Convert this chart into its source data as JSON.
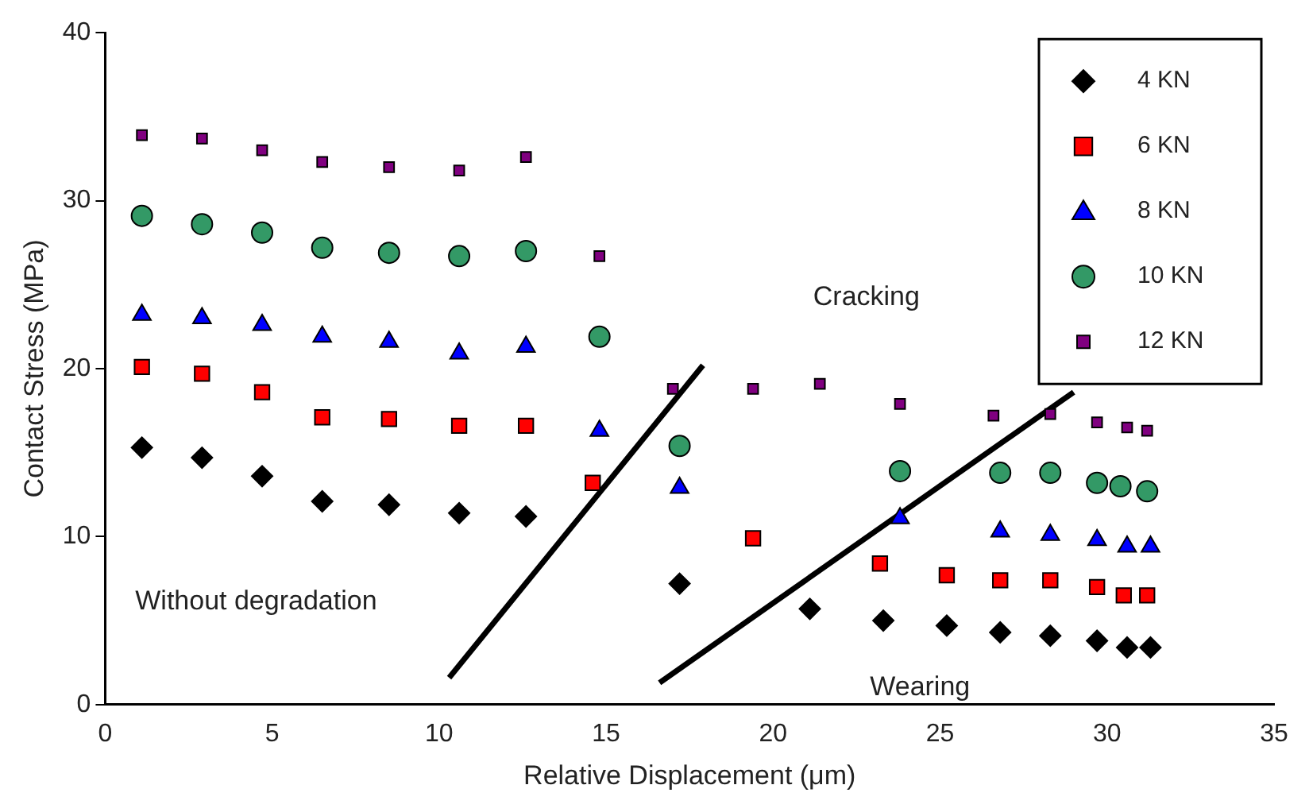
{
  "chart_data": {
    "type": "scatter",
    "xlabel": "Relative Displacement (μm)",
    "ylabel": "Contact Stress (MPa)",
    "xlim": [
      0,
      35
    ],
    "ylim": [
      0,
      40
    ],
    "xticks": [
      0,
      5,
      10,
      15,
      20,
      25,
      30,
      35
    ],
    "yticks": [
      0,
      10,
      20,
      30,
      40
    ],
    "grid": false,
    "legend": "top right",
    "annotations": [
      "Without degradation",
      "Cracking",
      "Wearing"
    ],
    "series": [
      {
        "name": "4 KN",
        "color": "#000000",
        "marker": "diamond",
        "x": [
          1.1,
          2.9,
          4.7,
          6.5,
          8.5,
          10.6,
          12.6,
          17.2,
          21.1,
          23.3,
          25.2,
          26.8,
          28.3,
          29.7,
          30.6,
          31.3
        ],
        "values": [
          15.3,
          14.7,
          13.6,
          12.1,
          11.9,
          11.4,
          11.2,
          7.2,
          5.7,
          5.0,
          4.7,
          4.3,
          4.1,
          3.8,
          3.4,
          3.4
        ]
      },
      {
        "name": "6 KN",
        "color": "#ff0000",
        "marker": "square",
        "x": [
          1.1,
          2.9,
          4.7,
          6.5,
          8.5,
          10.6,
          12.6,
          14.6,
          19.4,
          23.2,
          25.2,
          26.8,
          28.3,
          29.7,
          30.5,
          31.2
        ],
        "values": [
          20.1,
          19.7,
          18.6,
          17.1,
          17.0,
          16.6,
          16.6,
          13.2,
          9.9,
          8.4,
          7.7,
          7.4,
          7.4,
          7.0,
          6.5,
          6.5
        ]
      },
      {
        "name": "8 KN",
        "color": "#0000ff",
        "marker": "triangle",
        "x": [
          1.1,
          2.9,
          4.7,
          6.5,
          8.5,
          10.6,
          12.6,
          14.8,
          17.2,
          23.8,
          26.8,
          28.3,
          29.7,
          30.6,
          31.3
        ],
        "values": [
          23.2,
          23.0,
          22.6,
          21.9,
          21.6,
          20.9,
          21.3,
          16.3,
          12.9,
          11.1,
          10.3,
          10.1,
          9.8,
          9.4,
          9.4
        ]
      },
      {
        "name": "10 KN",
        "color": "#339966",
        "marker": "circle",
        "x": [
          1.1,
          2.9,
          4.7,
          6.5,
          8.5,
          10.6,
          12.6,
          14.8,
          17.2,
          23.8,
          26.8,
          28.3,
          29.7,
          30.4,
          31.2
        ],
        "values": [
          29.1,
          28.6,
          28.1,
          27.2,
          26.9,
          26.7,
          27.0,
          21.9,
          15.4,
          13.9,
          13.8,
          13.8,
          13.2,
          13.0,
          12.7
        ]
      },
      {
        "name": "12 KN",
        "color": "#800080",
        "marker": "square",
        "x": [
          1.1,
          2.9,
          4.7,
          6.5,
          8.5,
          10.6,
          12.6,
          14.8,
          17.0,
          19.4,
          21.4,
          23.8,
          26.6,
          28.3,
          29.7,
          30.6,
          31.2
        ],
        "values": [
          33.9,
          33.7,
          33.0,
          32.3,
          32.0,
          31.8,
          32.6,
          26.7,
          18.8,
          18.8,
          19.1,
          17.9,
          17.2,
          17.3,
          16.8,
          16.5,
          16.3
        ]
      },
      {
        "type": "line",
        "color": "#000000",
        "marker": "none",
        "x": [
          10.3,
          17.9
        ],
        "values": [
          1.6,
          20.2
        ]
      },
      {
        "type": "line",
        "color": "#000000",
        "marker": "none",
        "x": [
          16.6,
          29.0
        ],
        "values": [
          1.3,
          18.6
        ]
      }
    ]
  }
}
